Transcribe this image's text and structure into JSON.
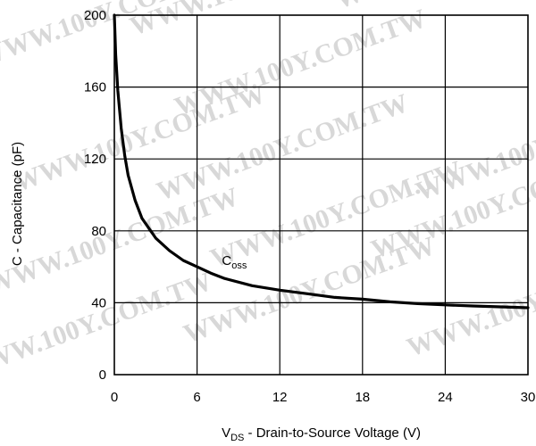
{
  "watermark_text": "WWW.100Y.COM.TW",
  "chart_data": {
    "type": "line",
    "xlabel": {
      "main": "V",
      "sub": "DS",
      "rest": " - Drain-to-Source Voltage (V)"
    },
    "ylabel": "C - Capacitance (pF)",
    "xlim": [
      0,
      30
    ],
    "ylim": [
      0,
      200
    ],
    "x_ticks": [
      0,
      6,
      12,
      18,
      24,
      30
    ],
    "y_ticks": [
      0,
      40,
      80,
      120,
      160,
      200
    ],
    "grid": true,
    "line_color": "#000000",
    "series": [
      {
        "name": "Coss",
        "label": {
          "main": "C",
          "sub": "oss"
        },
        "x": [
          0,
          0.1,
          0.25,
          0.5,
          0.75,
          1,
          1.5,
          2,
          3,
          4,
          5,
          6,
          7,
          8,
          10,
          12,
          14,
          16,
          18,
          20,
          22,
          24,
          26,
          28,
          30
        ],
        "y": [
          200,
          178,
          158,
          137,
          122,
          111,
          97,
          87,
          76,
          69,
          63.5,
          60,
          56.5,
          53.5,
          49.5,
          47,
          45,
          43,
          42,
          40.5,
          39.5,
          38.8,
          38.2,
          37.7,
          37.2
        ]
      }
    ]
  }
}
